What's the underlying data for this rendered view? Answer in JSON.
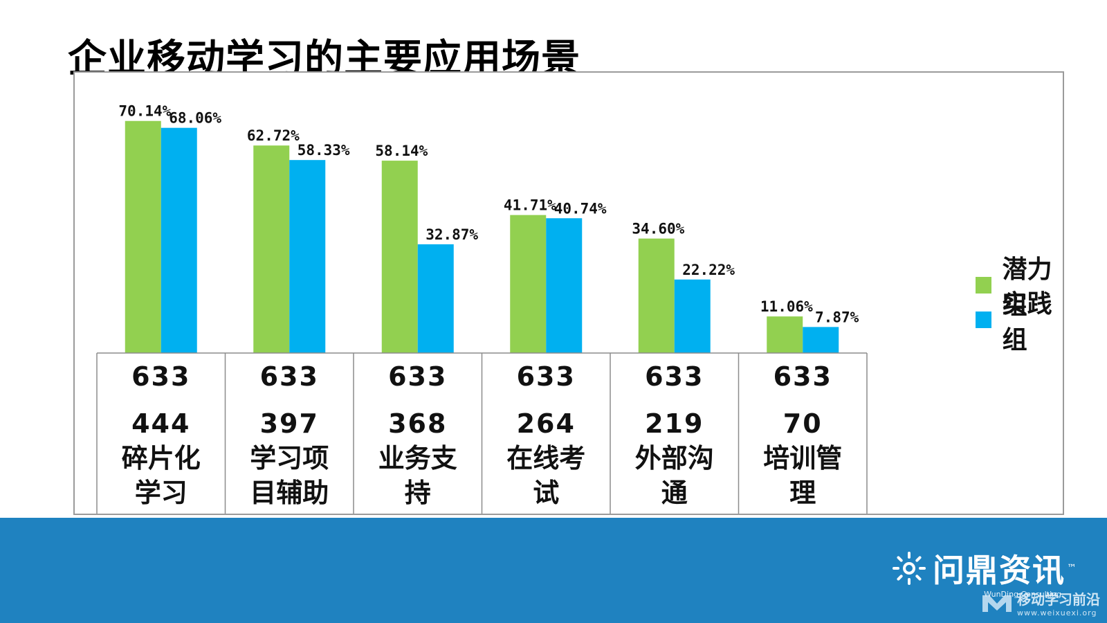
{
  "title": "企业移动学习的主要应用场景",
  "colors": {
    "green": "#92d050",
    "blue": "#00b0f0",
    "footer": "#1f82c0"
  },
  "chart_data": {
    "type": "bar",
    "categories": [
      "碎片化学习",
      "学习项目辅助",
      "业务支持",
      "在线考试",
      "外部沟通",
      "培训管理"
    ],
    "category_label_lines": [
      [
        "碎片化",
        "学习"
      ],
      [
        "学习项",
        "目辅助"
      ],
      [
        "业务支",
        "持"
      ],
      [
        "在线考",
        "试"
      ],
      [
        "外部沟",
        "通"
      ],
      [
        "培训管",
        "理"
      ]
    ],
    "series": [
      {
        "name": "潜力组",
        "values": [
          70.14,
          62.72,
          58.14,
          41.71,
          34.6,
          11.06
        ],
        "labels": [
          "70.14%",
          "62.72%",
          "58.14%",
          "41.71%",
          "34.60%",
          "11.06%"
        ]
      },
      {
        "name": "实践组",
        "values": [
          68.06,
          58.33,
          32.87,
          40.74,
          22.22,
          7.87
        ],
        "labels": [
          "68.06%",
          "58.33%",
          "32.87%",
          "40.74%",
          "22.22%",
          "7.87%"
        ]
      }
    ],
    "table_rows": [
      [
        "633",
        "633",
        "633",
        "633",
        "633",
        "633"
      ],
      [
        "444",
        "397",
        "368",
        "264",
        "219",
        "70"
      ]
    ],
    "ylim": [
      0,
      100
    ],
    "grid": false,
    "legend_position": "right"
  },
  "footer": {
    "brand_name": "问鼎资讯",
    "brand_tm": "™",
    "brand_subtitle": "WunDing Consulting",
    "watermark_text": "移动学习前沿",
    "watermark_url": "www.weixuexi.org"
  }
}
